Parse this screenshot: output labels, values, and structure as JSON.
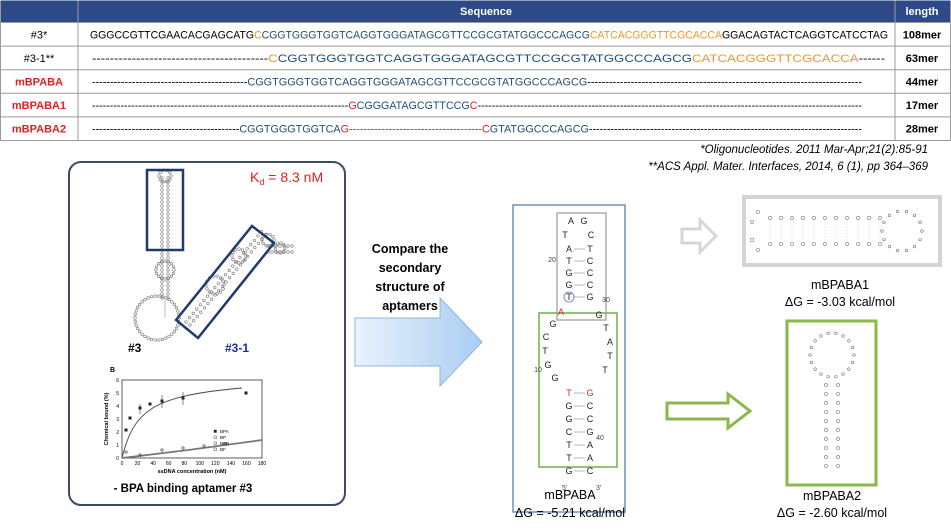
{
  "table": {
    "header_sequence": "Sequence",
    "header_length": "length",
    "rows": [
      {
        "name": "#3*",
        "name_color": "#000000",
        "length": "108mer",
        "segments": [
          {
            "text": "GGGCCGTTCGAACACGAGCATG",
            "color": "#000000"
          },
          {
            "text": "C",
            "color": "#f0962a"
          },
          {
            "text": "CGGTGGGTGGTCAGGTGGGATAGCGTTCCGCGTATGGCCCAGCG",
            "color": "#1f4e79"
          },
          {
            "text": "CATCACGGGTTCGCACCA",
            "color": "#f0962a"
          },
          {
            "text": "GGACAGTACTCAGGTCATCCTAG",
            "color": "#000000"
          }
        ]
      },
      {
        "name": "#3-1**",
        "name_color": "#000000",
        "length": "63mer",
        "segments": [
          {
            "text": "----------------------------------------",
            "color": "#000000"
          },
          {
            "text": "C",
            "color": "#f0962a"
          },
          {
            "text": "CGGTGGGTGGTCAGGTGGGATAGCGTTCCGCGTATGGCCCAGCG",
            "color": "#1f4e79"
          },
          {
            "text": "CATCACGGGTTCGCACCA",
            "color": "#f0962a"
          },
          {
            "text": "------",
            "color": "#000000"
          }
        ]
      },
      {
        "name": "mBPABA",
        "name_color": "#e02020",
        "length": "44mer",
        "segments": [
          {
            "text": "-------------------------------------------",
            "color": "#000000"
          },
          {
            "text": "CGGTGGGTGGTCAGGTGGGATAGCGTTCCGCGTATGGCCCAGCG",
            "color": "#1f4e79"
          },
          {
            "text": "----------------------------------------------------------------------------",
            "color": "#000000"
          }
        ]
      },
      {
        "name": "mBPABA1",
        "name_color": "#e02020",
        "length": "17mer",
        "segments": [
          {
            "text": "------------------------------------------------------------------------",
            "color": "#000000"
          },
          {
            "text": "G",
            "color": "#e02020"
          },
          {
            "text": "CGGGATAGCGTTCCG",
            "color": "#1f4e79"
          },
          {
            "text": "C",
            "color": "#e02020"
          },
          {
            "text": "------------------------------------------------------------------------------------------------------------",
            "color": "#000000"
          }
        ]
      },
      {
        "name": "mBPABA2",
        "name_color": "#e02020",
        "length": "28mer",
        "segments": [
          {
            "text": "-----------------------------------------",
            "color": "#000000"
          },
          {
            "text": "CGGTGGGTGGTCA",
            "color": "#1f4e79"
          },
          {
            "text": "G",
            "color": "#e02020"
          },
          {
            "text": "-------------------------------------",
            "color": "#e02020"
          },
          {
            "text": "C",
            "color": "#e02020"
          },
          {
            "text": "GTATGGCCCAGCG",
            "color": "#1f4e79"
          },
          {
            "text": "----------------------------------------------------------------------------",
            "color": "#000000"
          }
        ]
      }
    ]
  },
  "citations": [
    "*Oligonucleotides. 2011 Mar-Apr;21(2):85-91",
    "**ACS Appl. Mater. Interfaces, 2014, 6 (1), pp 364–369"
  ],
  "left_panel": {
    "kd_symbol": "K",
    "kd_subscript": "d",
    "kd_value": " = 8.3  nM",
    "label_3": "#3",
    "label_3_1": "#3-1",
    "caption": "- BPA binding aptamer #3",
    "graph": {
      "panel_letter": "B",
      "y_label": "Chemical bound (%)",
      "x_label": "ssDNA concentration (nM)",
      "legend": [
        "BPA",
        "BP",
        "BPB",
        "BF"
      ],
      "xticks": [
        "0",
        "20",
        "40",
        "60",
        "80",
        "100",
        "120",
        "140",
        "160",
        "180"
      ],
      "yticks": [
        "0",
        "1",
        "2",
        "3",
        "4",
        "5",
        "6"
      ]
    }
  },
  "arrow_text": [
    "Compare the",
    "secondary",
    "structure of",
    "aptamers"
  ],
  "mbpaba": {
    "name": "mBPABA",
    "dg": "ΔG =  -5.21 kcal/mol",
    "top_loop": [
      "A",
      "G",
      "T",
      "C"
    ],
    "upper_left": [
      "A",
      "T",
      "G",
      "G",
      "T"
    ],
    "upper_right": [
      "T",
      "C",
      "C",
      "C",
      "G"
    ],
    "loop_left": [
      "A",
      "G",
      "C",
      "T",
      "G",
      "G"
    ],
    "loop_right": [
      "G",
      "T",
      "A",
      "T",
      "T"
    ],
    "lower_left": [
      "T",
      "G",
      "G",
      "C",
      "T",
      "T",
      "G"
    ],
    "lower_right": [
      "G",
      "C",
      "C",
      "G",
      "A",
      "A",
      "C"
    ],
    "numbers": [
      "20",
      "30",
      "10",
      "40"
    ],
    "end_5": "5'",
    "end_3": "3'"
  },
  "mbpaba1": {
    "name": "mBPABA1",
    "dg": "ΔG =  -3.03 kcal/mol"
  },
  "mbpaba2": {
    "name": "mBPABA2",
    "dg": "ΔG =  -2.60 kcal/mol"
  }
}
